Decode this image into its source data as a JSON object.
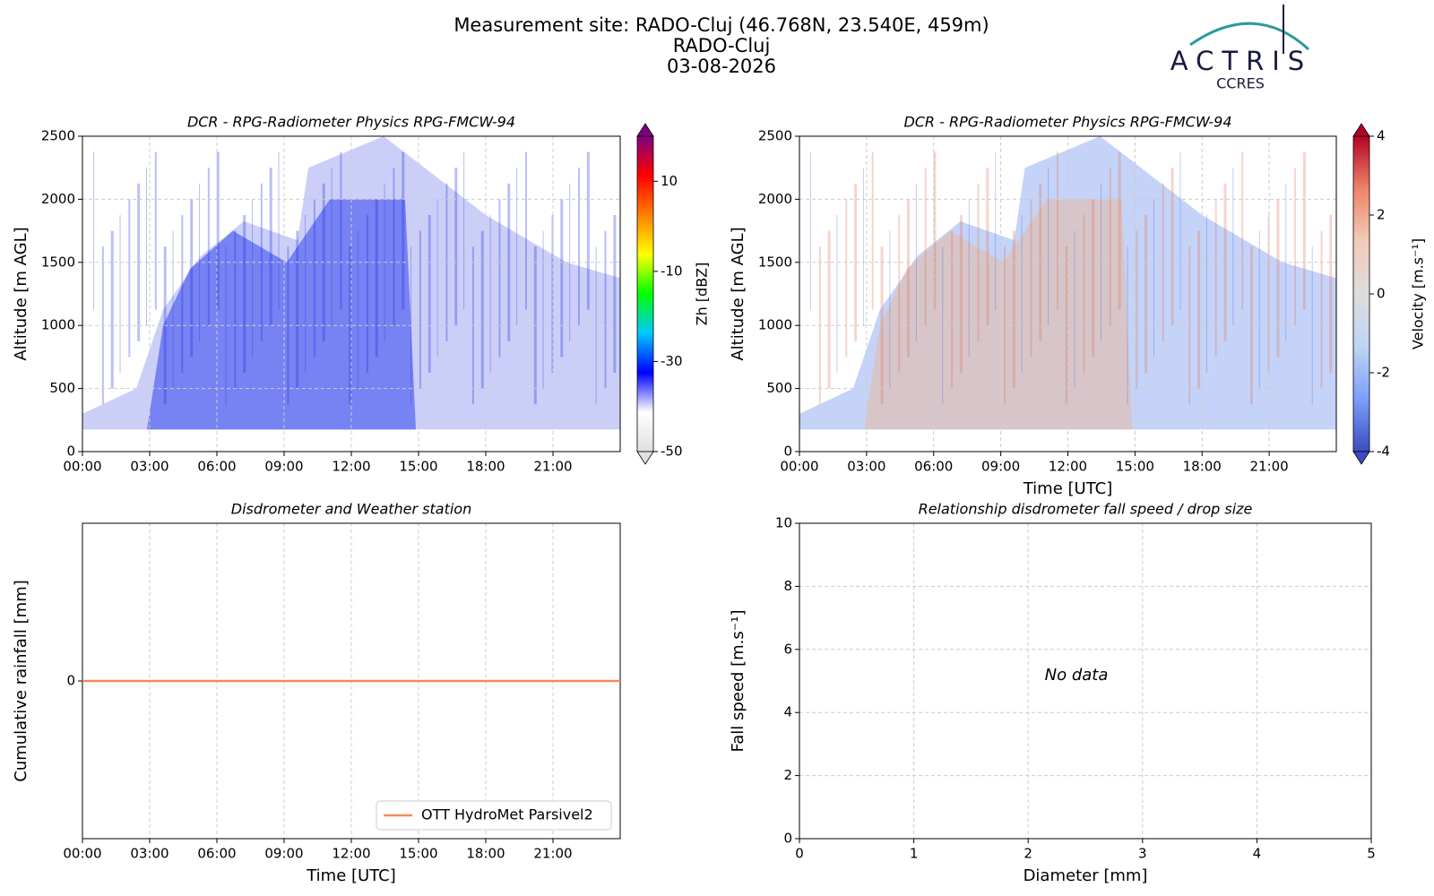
{
  "header": {
    "title": "Measurement site: RADO-Cluj (46.768N, 23.540E, 459m)",
    "subtitle": "RADO-Cluj",
    "date": "03-08-2026",
    "logo": "ACTRIS",
    "logo_sub": "CCRES"
  },
  "chart_data": [
    {
      "type": "heatmap",
      "title": "DCR - RPG-Radiometer Physics RPG-FMCW-94",
      "y_label": "Altitude [m AGL]",
      "xlim": [
        0,
        24
      ],
      "xticks": [
        {
          "value": 0,
          "label": "00:00"
        },
        {
          "value": 3,
          "label": "03:00"
        },
        {
          "value": 6,
          "label": "06:00"
        },
        {
          "value": 9,
          "label": "09:00"
        },
        {
          "value": 12,
          "label": "12:00"
        },
        {
          "value": 15,
          "label": "15:00"
        },
        {
          "value": 18,
          "label": "18:00"
        },
        {
          "value": 21,
          "label": "21:00"
        }
      ],
      "ylim": [
        0,
        2500
      ],
      "yticks": [
        0,
        500,
        1000,
        1500,
        2000,
        2500
      ],
      "grid": true,
      "colorbar_label": "Zh [dBZ]",
      "clim": [
        -50,
        20
      ],
      "cticks": [
        -50,
        -30,
        -10,
        10
      ],
      "colormap": [
        "#e0e0e0",
        "#ffffff",
        "#0000ff",
        "#00c8ff",
        "#00ff00",
        "#ffff00",
        "#ff8000",
        "#ff0000",
        "#800080"
      ]
    },
    {
      "type": "heatmap",
      "title": "DCR - RPG-Radiometer Physics RPG-FMCW-94",
      "y_label": "Altitude [m AGL]",
      "x_label": "Time [UTC]",
      "xlim": [
        0,
        24
      ],
      "xticks": [
        {
          "value": 0,
          "label": "00:00"
        },
        {
          "value": 3,
          "label": "03:00"
        },
        {
          "value": 6,
          "label": "06:00"
        },
        {
          "value": 9,
          "label": "09:00"
        },
        {
          "value": 12,
          "label": "12:00"
        },
        {
          "value": 15,
          "label": "15:00"
        },
        {
          "value": 18,
          "label": "18:00"
        },
        {
          "value": 21,
          "label": "21:00"
        }
      ],
      "ylim": [
        0,
        2500
      ],
      "yticks": [
        0,
        500,
        1000,
        1500,
        2000,
        2500
      ],
      "grid": true,
      "colorbar_label": "Velocity [m.s⁻¹]",
      "clim": [
        -4,
        4
      ],
      "cticks": [
        -4,
        -2,
        0,
        2,
        4
      ],
      "colormap": [
        "#3b4cc0",
        "#7b9ff9",
        "#c0d4f5",
        "#dddddd",
        "#f2cbb7",
        "#ee8468",
        "#b40426"
      ]
    },
    {
      "type": "line",
      "title": "Disdrometer and Weather station",
      "y_label": "Cumulative rainfall [mm]",
      "x_label": "Time [UTC]",
      "xlim": [
        0,
        24
      ],
      "xticks": [
        {
          "value": 0,
          "label": "00:00"
        },
        {
          "value": 3,
          "label": "03:00"
        },
        {
          "value": 6,
          "label": "06:00"
        },
        {
          "value": 9,
          "label": "09:00"
        },
        {
          "value": 12,
          "label": "12:00"
        },
        {
          "value": 15,
          "label": "15:00"
        },
        {
          "value": 18,
          "label": "18:00"
        },
        {
          "value": 21,
          "label": "21:00"
        }
      ],
      "ylim": [
        -1,
        1
      ],
      "yticks": [
        0
      ],
      "grid": true,
      "legend": "lower right",
      "x": [
        0,
        24
      ],
      "series": [
        {
          "name": "OTT HydroMet Parsivel2",
          "color": "#f08c5a",
          "values": [
            0,
            0
          ]
        }
      ]
    },
    {
      "type": "scatter",
      "title": "Relationship disdrometer fall speed / drop size",
      "y_label": "Fall speed [m.s⁻¹]",
      "x_label": "Diameter [mm]",
      "xlim": [
        0,
        5
      ],
      "xticks": [
        0,
        1,
        2,
        3,
        4,
        5
      ],
      "ylim": [
        0,
        10
      ],
      "yticks": [
        0,
        2,
        4,
        6,
        8,
        10
      ],
      "grid": true,
      "annotation": "No data",
      "x": [],
      "values": []
    }
  ]
}
